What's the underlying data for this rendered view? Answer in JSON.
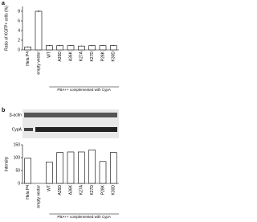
{
  "panel_labels": [
    "a",
    "b"
  ],
  "blot_labels": [
    "β-actin",
    "CypA"
  ],
  "chart_data": [
    {
      "type": "bar",
      "ylabel": "Ratio of KGFP+ cells (%)",
      "categories": [
        "Hela P4",
        "empty vector",
        "WT",
        "A35D",
        "A36K",
        "K27A",
        "K27D",
        "P28K",
        "K30D"
      ],
      "values": [
        0.6,
        8.0,
        0.9,
        0.9,
        0.9,
        0.8,
        0.9,
        0.9,
        0.9
      ],
      "errors": [
        0.1,
        0.2,
        0.1,
        0.1,
        0.1,
        0.1,
        0.1,
        0.1,
        0.1
      ],
      "color": "#ffffff",
      "ylim": [
        0,
        9
      ],
      "yticks": [
        0,
        2,
        4,
        6,
        8
      ],
      "note": "PBA++ complemented with CypA"
    },
    {
      "type": "bar",
      "ylabel": "Intensity",
      "categories": [
        "Hela P4",
        "empty vector",
        "WT",
        "A35D",
        "A36K",
        "K27A",
        "K27D",
        "P28K",
        "K30D"
      ],
      "values": [
        98,
        0,
        83,
        120,
        122,
        122,
        130,
        85,
        120
      ],
      "color": "#ffffff",
      "ylim": [
        0,
        150
      ],
      "yticks": [
        0,
        50,
        100,
        150
      ],
      "note": "PBA++ complemented with CypA"
    }
  ]
}
